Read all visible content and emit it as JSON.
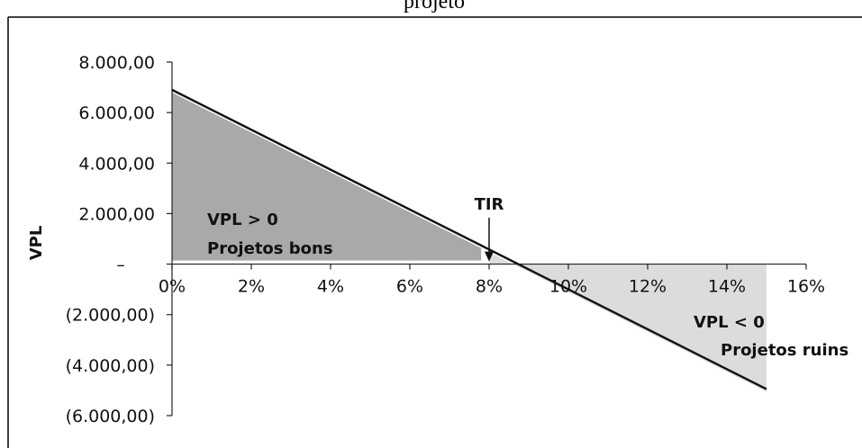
{
  "caption": "projeto",
  "chart_data": {
    "type": "line",
    "xlabel": "",
    "ylabel": "VPL",
    "x_tick_labels": [
      "0%",
      "2%",
      "4%",
      "6%",
      "8%",
      "10%",
      "12%",
      "14%",
      "16%"
    ],
    "x_tick_values": [
      0,
      2,
      4,
      6,
      8,
      10,
      12,
      14,
      16
    ],
    "y_tick_labels": [
      "8.000,00",
      "6.000,00",
      "4.000,00",
      "2.000,00",
      "–",
      "(2.000,00)",
      "(4.000,00)",
      "(6.000,00)"
    ],
    "y_tick_values": [
      8000,
      6000,
      4000,
      2000,
      0,
      -2000,
      -4000,
      -6000
    ],
    "xlim": [
      0,
      16
    ],
    "ylim": [
      -6000,
      8000
    ],
    "series": [
      {
        "x": [
          0,
          15
        ],
        "y": [
          6900,
          -4950
        ]
      }
    ],
    "shaded_regions": [
      {
        "x_from": 0,
        "x_to": 7.8,
        "label": "VPL > 0",
        "sublabel": "Projetos bons",
        "color": "#a9a9ab"
      },
      {
        "x_from": 8,
        "x_to": 15,
        "label": "VPL < 0",
        "sublabel": "Projetos ruins",
        "color": "#dcdcdd"
      }
    ],
    "annotation": {
      "label": "TIR",
      "x": 8
    },
    "grid": false,
    "legend": "none"
  }
}
